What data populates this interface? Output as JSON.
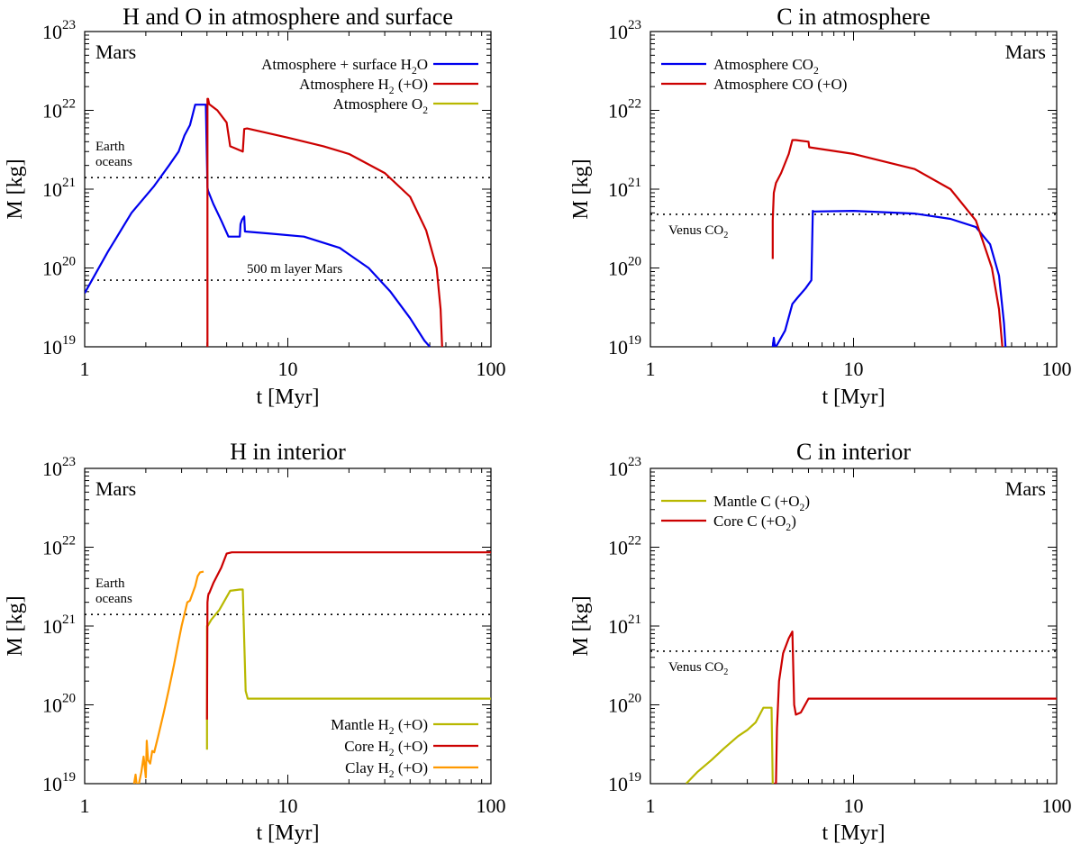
{
  "chart_data": [
    {
      "type": "line",
      "title": "H and O in atmosphere and surface",
      "planet_label": "Mars",
      "xlabel": "t [Myr]",
      "ylabel": "M [kg]",
      "xscale": "log",
      "yscale": "log",
      "xlim": [
        1,
        100
      ],
      "ylim": [
        1e+19,
        1e+23
      ],
      "x_ticks": [
        {
          "v": 1,
          "label": "1"
        },
        {
          "v": 10,
          "label": "10"
        },
        {
          "v": 100,
          "label": "100"
        }
      ],
      "y_ticks": [
        {
          "v": 1e+19,
          "exp": "19"
        },
        {
          "v": 1e+20,
          "exp": "20"
        },
        {
          "v": 1e+21,
          "exp": "21"
        },
        {
          "v": 1e+22,
          "exp": "22"
        },
        {
          "v": 1e+23,
          "exp": "23"
        }
      ],
      "legend_position": "top-right",
      "series": [
        {
          "name": "Atmosphere + surface H2O",
          "label": "Atmosphere + surface H",
          "sub": "2",
          "suffix": "O",
          "color": "#0000ee",
          "x": [
            1.0,
            1.3,
            1.7,
            2.2,
            2.6,
            2.9,
            3.1,
            3.3,
            3.5,
            3.95,
            4.02,
            4.05,
            4.3,
            4.7,
            5.1,
            5.5,
            5.8,
            5.85,
            5.95,
            6.1,
            6.15,
            8,
            12,
            18,
            25,
            32,
            40,
            47,
            50
          ],
          "y": [
            4.8e+19,
            1.6e+20,
            5e+20,
            1.1e+21,
            2e+21,
            3e+21,
            4.8e+21,
            6.5e+21,
            1.18e+22,
            1.18e+22,
            1.05e+21,
            9.5e+20,
            6.5e+20,
            4e+20,
            2.5e+20,
            2.5e+20,
            2.5e+20,
            3.6e+20,
            4.1e+20,
            4.5e+20,
            2.9e+20,
            2.75e+20,
            2.5e+20,
            1.8e+20,
            1e+20,
            5e+19,
            2.3e+19,
            1.2e+19,
            1e+19
          ]
        },
        {
          "name": "Atmosphere H2 (+O)",
          "label": "Atmosphere H",
          "sub": "2",
          "suffix": " (+O)",
          "color": "#cc0000",
          "x": [
            4.02,
            4.02,
            4.05,
            4.1,
            4.5,
            5.0,
            5.2,
            5.5,
            6.0,
            6.1,
            6.3,
            10,
            15,
            20,
            30,
            40,
            48,
            54,
            56.5,
            57.5
          ],
          "y": [
            1e+19,
            1.4e+22,
            1.4e+22,
            1.2e+22,
            1e+22,
            7e+21,
            3.5e+21,
            3.3e+21,
            3e+21,
            5.8e+21,
            5.9e+21,
            4.5e+21,
            3.5e+21,
            2.8e+21,
            1.6e+21,
            8e+20,
            3e+20,
            1e+20,
            3e+19,
            1e+19
          ]
        },
        {
          "name": "Atmosphere O2",
          "label": "Atmosphere O",
          "sub": "2",
          "suffix": "",
          "color": "#b8b800",
          "x": [],
          "y": []
        }
      ],
      "reference_lines": [
        {
          "value": 1.4e+21,
          "label": "Earth",
          "label2": "oceans",
          "position": "left"
        },
        {
          "value": 7e+19,
          "label": "500 m layer Mars",
          "position": "center"
        }
      ]
    },
    {
      "type": "line",
      "title": "C in atmosphere",
      "planet_label": "Mars",
      "xlabel": "t [Myr]",
      "ylabel": "M [kg]",
      "xscale": "log",
      "yscale": "log",
      "xlim": [
        1,
        100
      ],
      "ylim": [
        1e+19,
        1e+23
      ],
      "x_ticks": [
        {
          "v": 1,
          "label": "1"
        },
        {
          "v": 10,
          "label": "10"
        },
        {
          "v": 100,
          "label": "100"
        }
      ],
      "y_ticks": [
        {
          "v": 1e+19,
          "exp": "19"
        },
        {
          "v": 1e+20,
          "exp": "20"
        },
        {
          "v": 1e+21,
          "exp": "21"
        },
        {
          "v": 1e+22,
          "exp": "22"
        },
        {
          "v": 1e+23,
          "exp": "23"
        }
      ],
      "legend_position": "top-left",
      "series": [
        {
          "name": "Atmosphere CO2",
          "label": "Atmosphere CO",
          "sub": "2",
          "suffix": "",
          "color": "#0000ee",
          "x": [
            4.0,
            4.05,
            4.1,
            4.2,
            4.6,
            5.0,
            5.3,
            5.8,
            6.2,
            6.3,
            6.35,
            10,
            20,
            30,
            40,
            47,
            52,
            55,
            56
          ],
          "y": [
            1e+19,
            1.3e+19,
            1e+19,
            1.05e+19,
            1.6e+19,
            3.5e+19,
            4.2e+19,
            5.5e+19,
            7e+19,
            5.3e+20,
            5.2e+20,
            5.3e+20,
            4.9e+20,
            4.2e+20,
            3.3e+20,
            2e+20,
            8e+19,
            2e+19,
            1e+19
          ]
        },
        {
          "name": "Atmosphere CO (+O)",
          "label": "Atmosphere CO (+O)",
          "sub": "",
          "suffix": "",
          "color": "#cc0000",
          "x": [
            4.0,
            4.0,
            4.05,
            4.15,
            4.4,
            4.8,
            5.0,
            5.2,
            6.0,
            6.05,
            10,
            20,
            30,
            40,
            48,
            52,
            54
          ],
          "y": [
            1.3e+20,
            4e+20,
            9e+20,
            1.2e+21,
            1.6e+21,
            2.8e+21,
            4.2e+21,
            4.2e+21,
            4e+21,
            3.4e+21,
            2.8e+21,
            1.8e+21,
            1e+21,
            4e+20,
            1e+20,
            3e+19,
            1e+19
          ]
        }
      ],
      "reference_lines": [
        {
          "value": 4.8e+20,
          "label": "Venus CO",
          "sub": "2",
          "position": "left-below"
        }
      ]
    },
    {
      "type": "line",
      "title": "H in interior",
      "planet_label": "Mars",
      "xlabel": "t [Myr]",
      "ylabel": "M [kg]",
      "xscale": "log",
      "yscale": "log",
      "xlim": [
        1,
        100
      ],
      "ylim": [
        1e+19,
        1e+23
      ],
      "x_ticks": [
        {
          "v": 1,
          "label": "1"
        },
        {
          "v": 10,
          "label": "10"
        },
        {
          "v": 100,
          "label": "100"
        }
      ],
      "y_ticks": [
        {
          "v": 1e+19,
          "exp": "19"
        },
        {
          "v": 1e+20,
          "exp": "20"
        },
        {
          "v": 1e+21,
          "exp": "21"
        },
        {
          "v": 1e+22,
          "exp": "22"
        },
        {
          "v": 1e+23,
          "exp": "23"
        }
      ],
      "legend_position": "bottom-right",
      "series": [
        {
          "name": "Mantle H2 (+O)",
          "label": "Mantle H",
          "sub": "2",
          "suffix": " (+O)",
          "color": "#b8b800",
          "x": [
            4.0,
            4.0,
            4.03,
            4.2,
            4.6,
            5.2,
            5.8,
            6.0,
            6.2,
            6.35,
            10,
            30,
            100
          ],
          "y": [
            2.7e+19,
            1e+21,
            1e+21,
            1.2e+21,
            1.6e+21,
            2.8e+21,
            2.9e+21,
            2.9e+21,
            1.5e+20,
            1.2e+20,
            1.2e+20,
            1.2e+20,
            1.2e+20
          ]
        },
        {
          "name": "Core H2 (+O)",
          "label": "Core H",
          "sub": "2",
          "suffix": " (+O)",
          "color": "#cc0000",
          "x": [
            4.0,
            4.02,
            4.05,
            4.08,
            4.1,
            4.3,
            4.7,
            5.0,
            5.3,
            6,
            10,
            30,
            100
          ],
          "y": [
            6.5e+19,
            2e+21,
            2.4e+21,
            2.6e+21,
            2.6e+21,
            3.5e+21,
            5.5e+21,
            8.3e+21,
            8.6e+21,
            8.6e+21,
            8.6e+21,
            8.6e+21,
            8.6e+21
          ]
        },
        {
          "name": "Clay H2 (+O)",
          "label": "Clay H",
          "sub": "2",
          "suffix": " (+O)",
          "color": "#ff9900",
          "x": [
            1.75,
            1.78,
            1.8,
            1.85,
            1.9,
            1.95,
            2.0,
            2.02,
            2.05,
            2.1,
            2.15,
            2.2,
            2.3,
            2.45,
            2.6,
            2.75,
            2.9,
            3.0,
            3.2,
            3.3,
            3.5,
            3.6,
            3.7,
            3.85
          ],
          "y": [
            1e+19,
            1.3e+19,
            1e+19,
            1e+19,
            1.4e+19,
            2.2e+19,
            1.2e+19,
            3.5e+19,
            2e+19,
            1.8e+19,
            2.6e+19,
            2.5e+19,
            4e+19,
            8e+19,
            1.6e+20,
            3.2e+20,
            6.5e+20,
            1e+21,
            2e+21,
            2.1e+21,
            3.2e+21,
            4.3e+21,
            4.8e+21,
            4.9e+21
          ]
        }
      ],
      "reference_lines": [
        {
          "value": 1.4e+21,
          "label": "Earth",
          "label2": "oceans",
          "position": "left"
        }
      ]
    },
    {
      "type": "line",
      "title": "C in interior",
      "planet_label": "Mars",
      "xlabel": "t [Myr]",
      "ylabel": "M [kg]",
      "xscale": "log",
      "yscale": "log",
      "xlim": [
        1,
        100
      ],
      "ylim": [
        1e+19,
        1e+23
      ],
      "x_ticks": [
        {
          "v": 1,
          "label": "1"
        },
        {
          "v": 10,
          "label": "10"
        },
        {
          "v": 100,
          "label": "100"
        }
      ],
      "y_ticks": [
        {
          "v": 1e+19,
          "exp": "19"
        },
        {
          "v": 1e+20,
          "exp": "20"
        },
        {
          "v": 1e+21,
          "exp": "21"
        },
        {
          "v": 1e+22,
          "exp": "22"
        },
        {
          "v": 1e+23,
          "exp": "23"
        }
      ],
      "legend_position": "top-left",
      "series": [
        {
          "name": "Mantle C (+O2)",
          "label": "Mantle C (+O",
          "sub": "2",
          "suffix": ")",
          "color": "#b8b800",
          "x": [
            1.5,
            1.7,
            2.0,
            2.3,
            2.7,
            3.0,
            3.3,
            3.6,
            3.9,
            3.95,
            4.0
          ],
          "y": [
            1e+19,
            1.4e+19,
            2e+19,
            2.8e+19,
            4e+19,
            4.8e+19,
            6e+19,
            9.2e+19,
            9.2e+19,
            9.2e+19,
            1e+19
          ]
        },
        {
          "name": "Core C (+O2)",
          "label": "Core C (+O",
          "sub": "2",
          "suffix": ")",
          "color": "#cc0000",
          "x": [
            4.05,
            4.15,
            4.2,
            4.3,
            4.5,
            4.8,
            5.0,
            5.1,
            5.2,
            5.5,
            6.0,
            10,
            30,
            100
          ],
          "y": [
            1e+19,
            1e+19,
            5e+19,
            2e+20,
            4.5e+20,
            7e+20,
            8.5e+20,
            1e+20,
            7.5e+19,
            8e+19,
            1.2e+20,
            1.2e+20,
            1.2e+20,
            1.2e+20
          ]
        }
      ],
      "reference_lines": [
        {
          "value": 4.8e+20,
          "label": "Venus CO",
          "sub": "2",
          "position": "left-below"
        }
      ]
    }
  ]
}
